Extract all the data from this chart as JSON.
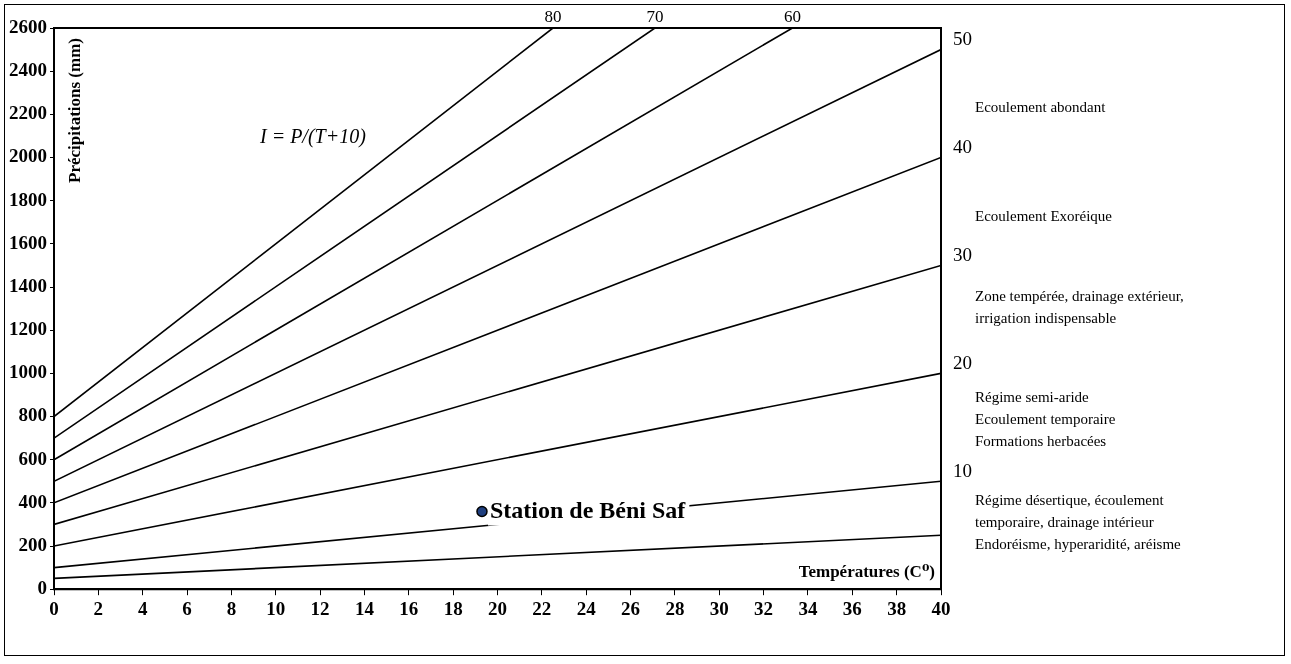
{
  "chart_data": {
    "type": "line",
    "xlabel": "Températures (C⁰)",
    "ylabel": "Précipitations (mm)",
    "xlim": [
      0,
      40
    ],
    "xticks": [
      0,
      2,
      4,
      6,
      8,
      10,
      12,
      14,
      16,
      18,
      20,
      22,
      24,
      26,
      28,
      30,
      32,
      34,
      36,
      38,
      40
    ],
    "ylim": [
      0,
      2600
    ],
    "yticks": [
      0,
      200,
      400,
      600,
      800,
      1000,
      1200,
      1400,
      1600,
      1800,
      2000,
      2200,
      2400,
      2600
    ],
    "legend": false,
    "series": [
      {
        "name": "80",
        "color": "#000000",
        "x": [
          0,
          22.5
        ],
        "values": [
          800,
          2600
        ]
      },
      {
        "name": "70",
        "color": "#000000",
        "x": [
          0,
          27.1
        ],
        "values": [
          700,
          2600
        ]
      },
      {
        "name": "60",
        "color": "#000000",
        "x": [
          0,
          33.3
        ],
        "values": [
          600,
          2600
        ]
      },
      {
        "name": "50",
        "color": "#000000",
        "x": [
          0,
          40
        ],
        "values": [
          500,
          2500
        ]
      },
      {
        "name": "40",
        "color": "#000000",
        "x": [
          0,
          40
        ],
        "values": [
          400,
          2000
        ]
      },
      {
        "name": "30",
        "color": "#000000",
        "x": [
          0,
          40
        ],
        "values": [
          300,
          1500
        ]
      },
      {
        "name": "20",
        "color": "#000000",
        "x": [
          0,
          40
        ],
        "values": [
          200,
          1000
        ]
      },
      {
        "name": "10",
        "color": "#000000",
        "x": [
          0,
          40
        ],
        "values": [
          100,
          500
        ]
      },
      {
        "color": "#000000",
        "x": [
          0,
          40
        ],
        "values": [
          50,
          250
        ]
      },
      {
        "type": "scatter",
        "name": "Station de Béni Saf",
        "color": "#1f3f7f",
        "marker": "circle",
        "x": [
          19.3
        ],
        "values": [
          360
        ]
      }
    ],
    "annotations": [
      "I = P/(T+10)",
      "Ecoulement abondant",
      "Ecoulement Exoréique",
      "Zone tempérée, drainage extérieur,\nirrigation indispensable",
      "Régime semi-aride\nEcoulement temporaire\nFormations herbacées",
      "Régime désertique, écoulement\ntemporaire, drainage intérieur\nEndoréisme, hyperaridité, aréisme"
    ]
  }
}
